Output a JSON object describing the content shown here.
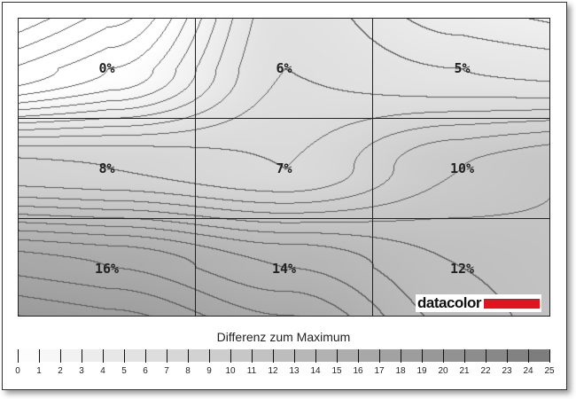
{
  "chart_data": {
    "type": "heatmap",
    "rows": [
      [
        0,
        6,
        5
      ],
      [
        8,
        7,
        10
      ],
      [
        16,
        14,
        12
      ]
    ],
    "labels": [
      [
        "0%",
        "6%",
        "5%"
      ],
      [
        "8%",
        "7%",
        "10%"
      ],
      [
        "16%",
        "14%",
        "12%"
      ]
    ],
    "colorbar": {
      "title": "Differenz zum Maximum",
      "min": 0,
      "max": 25,
      "ticks": [
        "0",
        "1",
        "2",
        "3",
        "4",
        "5",
        "6",
        "7",
        "8",
        "9",
        "10",
        "11",
        "12",
        "13",
        "14",
        "15",
        "16",
        "17",
        "18",
        "19",
        "20",
        "21",
        "22",
        "23",
        "24",
        "25"
      ]
    },
    "contours": true,
    "colors": {
      "low": "#ffffff",
      "high": "#7a7a7a"
    }
  },
  "logo": {
    "text": "datacolor",
    "accent": "#e0141e"
  }
}
